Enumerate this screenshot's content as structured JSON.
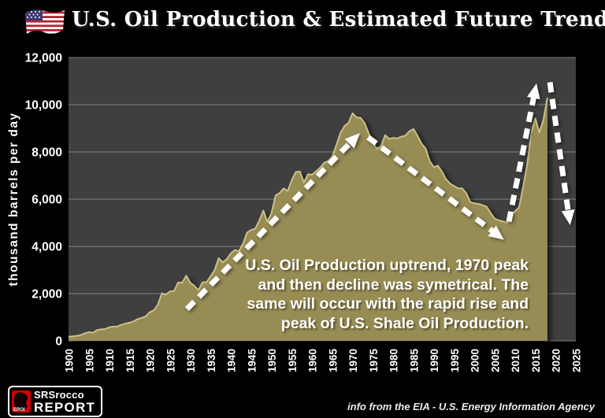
{
  "header": {
    "title": "U.S. Oil Production & Estimated Future Trend"
  },
  "footer": {
    "source_note": "info from the EIA - U.S. Energy Information Agency",
    "logo": {
      "eroi_label": "EROI",
      "line1": "SRSrocco",
      "line2": "REPORT"
    }
  },
  "colors": {
    "background": "#000000",
    "plot_background": "#3F3F3F",
    "gridline": "#8F8F8F",
    "area_fill": "#978C54",
    "area_highlight": "#CBC08A",
    "arrow": "#FFFFFF",
    "text": "#FFFFFF",
    "flag_red": "#B22234",
    "flag_blue": "#3C3B6E",
    "logo_red": "#D40000"
  },
  "chart_data": {
    "type": "area",
    "title": "U.S. Oil Production & Estimated Future Trend",
    "xlabel": "",
    "ylabel": "thousand barrels per day",
    "xlim": [
      1900,
      2025
    ],
    "ylim": [
      0,
      12000
    ],
    "grid": "horizontal",
    "legend": "none",
    "yticks": [
      0,
      2000,
      4000,
      6000,
      8000,
      10000,
      12000
    ],
    "ytick_labels": [
      "0",
      "2,000",
      "4,000",
      "6,000",
      "8,000",
      "10,000",
      "12,000"
    ],
    "xticks": [
      1900,
      1905,
      1910,
      1915,
      1920,
      1925,
      1930,
      1935,
      1940,
      1945,
      1950,
      1955,
      1960,
      1965,
      1970,
      1975,
      1980,
      1985,
      1990,
      1995,
      2000,
      2005,
      2010,
      2015,
      2020,
      2025
    ],
    "xtick_labels": [
      "1900",
      "1905",
      "1910",
      "1915",
      "1920",
      "1925",
      "1930",
      "1935",
      "1940",
      "1945",
      "1950",
      "1955",
      "1960",
      "1965",
      "1970",
      "1975",
      "1980",
      "1985",
      "1990",
      "1995",
      "2000",
      "2005",
      "2010",
      "2015",
      "2020",
      "2025"
    ],
    "series": [
      {
        "name": "U.S. Oil Production",
        "x": [
          1900,
          1901,
          1902,
          1903,
          1904,
          1905,
          1906,
          1907,
          1908,
          1909,
          1910,
          1911,
          1912,
          1913,
          1914,
          1915,
          1916,
          1917,
          1918,
          1919,
          1920,
          1921,
          1922,
          1923,
          1924,
          1925,
          1926,
          1927,
          1928,
          1929,
          1930,
          1931,
          1932,
          1933,
          1934,
          1935,
          1936,
          1937,
          1938,
          1939,
          1940,
          1941,
          1942,
          1943,
          1944,
          1945,
          1946,
          1947,
          1948,
          1949,
          1950,
          1951,
          1952,
          1953,
          1954,
          1955,
          1956,
          1957,
          1958,
          1959,
          1960,
          1961,
          1962,
          1963,
          1964,
          1965,
          1966,
          1967,
          1968,
          1969,
          1970,
          1971,
          1972,
          1973,
          1974,
          1975,
          1976,
          1977,
          1978,
          1979,
          1980,
          1981,
          1982,
          1983,
          1984,
          1985,
          1986,
          1987,
          1988,
          1989,
          1990,
          1991,
          1992,
          1993,
          1994,
          1995,
          1996,
          1997,
          1998,
          1999,
          2000,
          2001,
          2002,
          2003,
          2004,
          2005,
          2006,
          2007,
          2008,
          2009,
          2010,
          2011,
          2012,
          2013,
          2014,
          2015,
          2016,
          2017,
          2018
        ],
        "values": [
          174,
          190,
          213,
          246,
          320,
          369,
          347,
          455,
          488,
          500,
          574,
          603,
          609,
          678,
          728,
          770,
          822,
          919,
          973,
          1037,
          1210,
          1294,
          1527,
          2010,
          1960,
          2092,
          2114,
          2470,
          2463,
          2760,
          2460,
          2332,
          2145,
          2481,
          2488,
          2730,
          3001,
          3500,
          3327,
          3464,
          3707,
          3847,
          3796,
          4125,
          4584,
          4695,
          4751,
          5088,
          5520,
          5046,
          5407,
          6158,
          6256,
          6458,
          6342,
          6807,
          7151,
          7170,
          6710,
          7054,
          7035,
          7183,
          7332,
          7542,
          7614,
          7804,
          8295,
          8810,
          9096,
          9238,
          9637,
          9463,
          9441,
          9208,
          8774,
          8375,
          8132,
          8245,
          8707,
          8552,
          8597,
          8572,
          8649,
          8688,
          8879,
          8971,
          8680,
          8349,
          8140,
          7613,
          7355,
          7417,
          7171,
          6847,
          6662,
          6560,
          6465,
          6452,
          6252,
          5881,
          5822,
          5801,
          5746,
          5681,
          5419,
          5178,
          5102,
          5064,
          5000,
          5353,
          5479,
          5653,
          6497,
          7461,
          8759,
          9431,
          8831,
          9352,
          10300
        ]
      }
    ],
    "annotation": {
      "lines": [
        "U.S. Oil Production uptrend, 1970 peak",
        "and then decline was symetrical. The",
        "same will occur with the rapid rise and",
        "peak  of U.S. Shale Oil Production."
      ]
    },
    "arrows": [
      {
        "name": "historic-uptrend-arrow",
        "from": [
          1929.2,
          1350
        ],
        "to": [
          1971.8,
          8800
        ]
      },
      {
        "name": "historic-decline-arrow",
        "from": [
          1973.8,
          8620
        ],
        "to": [
          2007.3,
          4280
        ]
      },
      {
        "name": "shale-uptrend-arrow",
        "from": [
          2008.5,
          5050
        ],
        "to": [
          2015.3,
          10900
        ]
      },
      {
        "name": "estimated-decline-arrow",
        "from": [
          2018.6,
          10950
        ],
        "to": [
          2023.6,
          4900
        ]
      }
    ]
  }
}
